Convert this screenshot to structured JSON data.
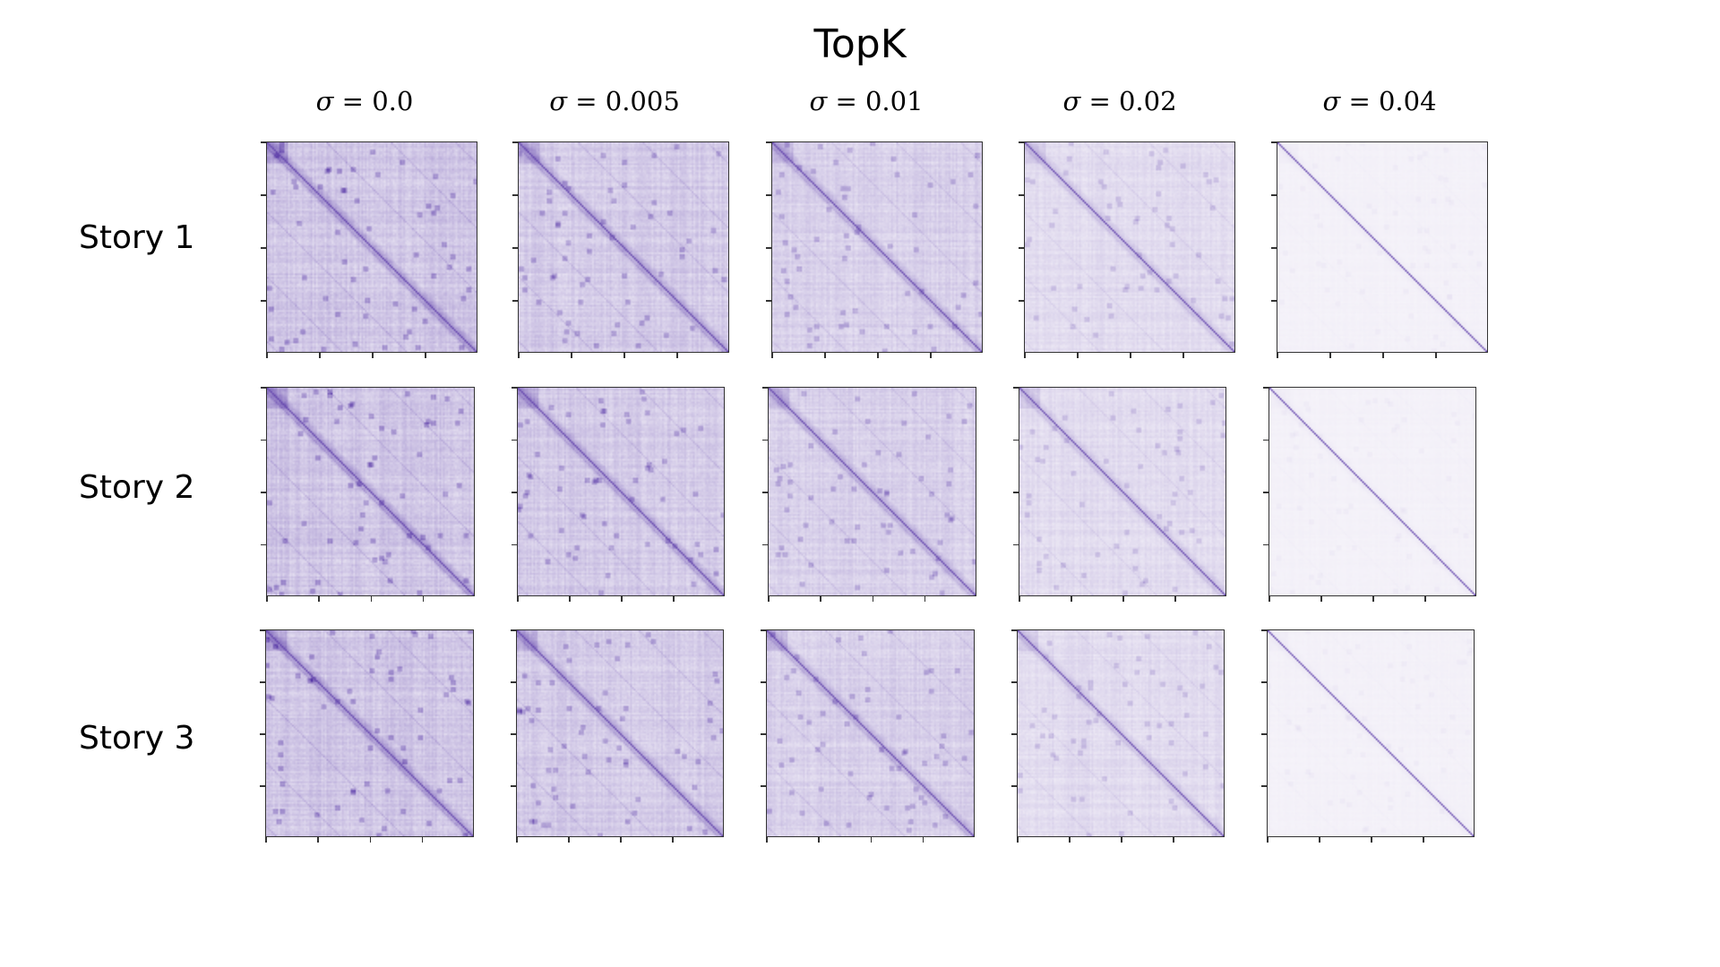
{
  "title": "TopK",
  "chart_data": {
    "type": "heatmap",
    "title": "TopK",
    "columns": [
      {
        "symbol": "σ",
        "label": "= 0.0",
        "sigma": 0.0
      },
      {
        "symbol": "σ",
        "label": "= 0.005",
        "sigma": 0.005
      },
      {
        "symbol": "σ",
        "label": "= 0.01",
        "sigma": 0.01
      },
      {
        "symbol": "σ",
        "label": "= 0.02",
        "sigma": 0.02
      },
      {
        "symbol": "σ",
        "label": "= 0.04",
        "sigma": 0.04
      }
    ],
    "rows": [
      "Story 1",
      "Story 2",
      "Story 3"
    ],
    "colormap": "Purples",
    "grid": false,
    "tick_labels_visible": false
  },
  "colors": {
    "diagonal": "#5a3fb8",
    "background_tint": "#e9e2f6",
    "frame": "#333333"
  }
}
